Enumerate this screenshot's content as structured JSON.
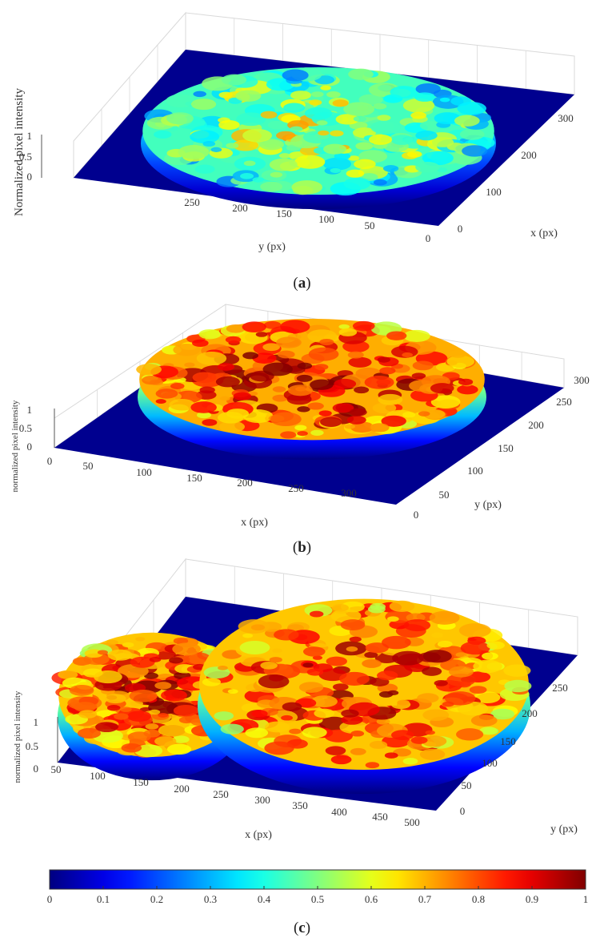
{
  "captions": [
    "a",
    "b",
    "c"
  ],
  "chart_data": [
    {
      "type": "surface3d",
      "panel": "a",
      "zlabel": "Normalized pixel intensity",
      "xlabel": "x (px)",
      "ylabel": "y (px)",
      "x_ticks": [
        "0",
        "100",
        "200",
        "300"
      ],
      "y_ticks": [
        "250",
        "200",
        "150",
        "100",
        "50",
        "0"
      ],
      "z_ticks": [
        "0",
        "0.5",
        "1"
      ],
      "zlim": [
        0,
        1
      ],
      "surface": "roughly circular plateau of intensity ~0.45–0.75, floor 0 outside",
      "plateau_mean": 0.55
    },
    {
      "type": "surface3d",
      "panel": "b",
      "zlabel": "normalized pixel intensity",
      "xlabel": "x (px)",
      "ylabel": "y (px)",
      "x_ticks": [
        "0",
        "50",
        "100",
        "150",
        "200",
        "250",
        "300"
      ],
      "y_ticks": [
        "0",
        "50",
        "100",
        "150",
        "200",
        "250",
        "300"
      ],
      "z_ticks": [
        "0",
        "0.5",
        "1"
      ],
      "zlim": [
        0,
        1
      ],
      "surface": "roughly circular plateau of intensity ~0.8–1.0",
      "plateau_mean": 0.88
    },
    {
      "type": "surface3d",
      "panel": "c",
      "zlabel": "normalized pixel intensity",
      "xlabel": "x (px)",
      "ylabel": "y (px)",
      "x_ticks": [
        "50",
        "100",
        "150",
        "200",
        "250",
        "300",
        "350",
        "400",
        "450",
        "500"
      ],
      "y_ticks": [
        "0",
        "50",
        "100",
        "150",
        "200",
        "250"
      ],
      "z_ticks": [
        "0",
        "0.5",
        "1"
      ],
      "zlim": [
        0,
        1
      ],
      "surface": "two overlapping plateaus of intensity ~0.75–1.0",
      "plateau_mean": 0.85
    }
  ],
  "colorbar": {
    "colormap": "jet",
    "ticks": [
      "0",
      "0.1",
      "0.2",
      "0.3",
      "0.4",
      "0.5",
      "0.6",
      "0.7",
      "0.8",
      "0.9",
      "1"
    ],
    "range": [
      0,
      1
    ]
  },
  "colors": {
    "floor": "#00008f",
    "grid": "#d9d9d9",
    "axis": "#555555"
  }
}
